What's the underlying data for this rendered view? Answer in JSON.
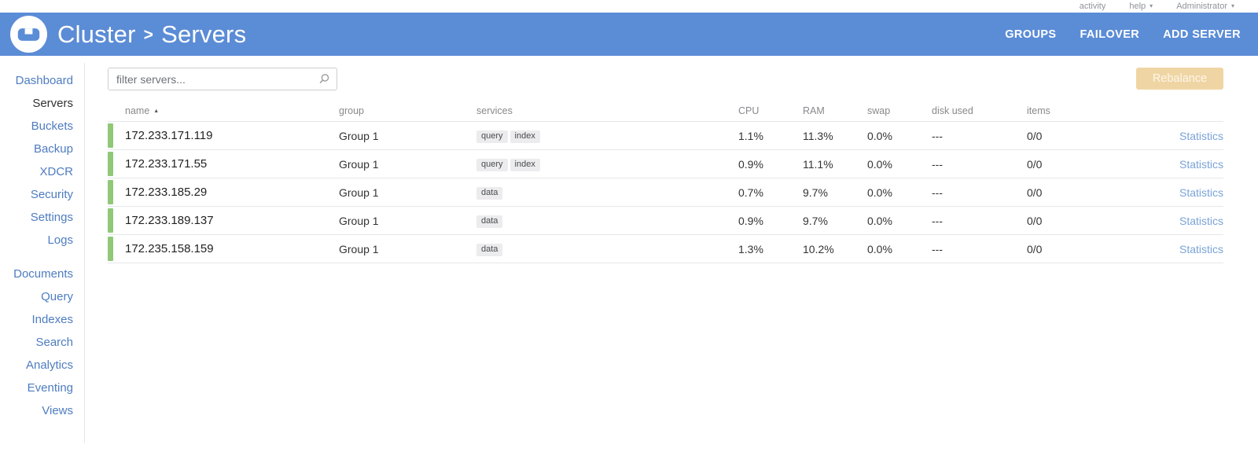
{
  "topbar": {
    "activity": "activity",
    "help": "help",
    "user": "Administrator"
  },
  "header": {
    "breadcrumb": {
      "root": "Cluster",
      "current": "Servers"
    },
    "actions": [
      {
        "label": "GROUPS"
      },
      {
        "label": "FAILOVER"
      },
      {
        "label": "ADD SERVER"
      }
    ]
  },
  "sidebar": {
    "groups": [
      {
        "items": [
          {
            "label": "Dashboard"
          },
          {
            "label": "Servers",
            "active": true
          },
          {
            "label": "Buckets"
          },
          {
            "label": "Backup"
          },
          {
            "label": "XDCR"
          },
          {
            "label": "Security"
          },
          {
            "label": "Settings"
          },
          {
            "label": "Logs"
          }
        ]
      },
      {
        "items": [
          {
            "label": "Documents"
          },
          {
            "label": "Query"
          },
          {
            "label": "Indexes"
          },
          {
            "label": "Search"
          },
          {
            "label": "Analytics"
          },
          {
            "label": "Eventing"
          },
          {
            "label": "Views"
          }
        ]
      }
    ]
  },
  "toolbar": {
    "filter_placeholder": "filter servers...",
    "rebalance_label": "Rebalance"
  },
  "table": {
    "columns": [
      {
        "label": "name",
        "sort": "asc",
        "sortable": true
      },
      {
        "label": "group"
      },
      {
        "label": "services"
      },
      {
        "label": "CPU"
      },
      {
        "label": "RAM"
      },
      {
        "label": "swap"
      },
      {
        "label": "disk used"
      },
      {
        "label": "items"
      }
    ],
    "stats_label": "Statistics",
    "rows": [
      {
        "name": "172.233.171.119",
        "group": "Group 1",
        "services": [
          "query",
          "index"
        ],
        "cpu": "1.1%",
        "ram": "11.3%",
        "swap": "0.0%",
        "disk_used": "---",
        "items": "0/0",
        "health": "healthy"
      },
      {
        "name": "172.233.171.55",
        "group": "Group 1",
        "services": [
          "query",
          "index"
        ],
        "cpu": "0.9%",
        "ram": "11.1%",
        "swap": "0.0%",
        "disk_used": "---",
        "items": "0/0",
        "health": "healthy"
      },
      {
        "name": "172.233.185.29",
        "group": "Group 1",
        "services": [
          "data"
        ],
        "cpu": "0.7%",
        "ram": "9.7%",
        "swap": "0.0%",
        "disk_used": "---",
        "items": "0/0",
        "health": "healthy"
      },
      {
        "name": "172.233.189.137",
        "group": "Group 1",
        "services": [
          "data"
        ],
        "cpu": "0.9%",
        "ram": "9.7%",
        "swap": "0.0%",
        "disk_used": "---",
        "items": "0/0",
        "health": "healthy"
      },
      {
        "name": "172.235.158.159",
        "group": "Group 1",
        "services": [
          "data"
        ],
        "cpu": "1.3%",
        "ram": "10.2%",
        "swap": "0.0%",
        "disk_used": "---",
        "items": "0/0",
        "health": "healthy"
      }
    ]
  },
  "colors": {
    "appbar_blue": "#5b8cd6",
    "link_blue": "#4e7cc0",
    "active_indicator": "#5b8cd6",
    "healthy_green": "#90c878",
    "rebalance_disabled_bg": "#f0d5a4",
    "statistics_link": "#7aa3d6"
  }
}
